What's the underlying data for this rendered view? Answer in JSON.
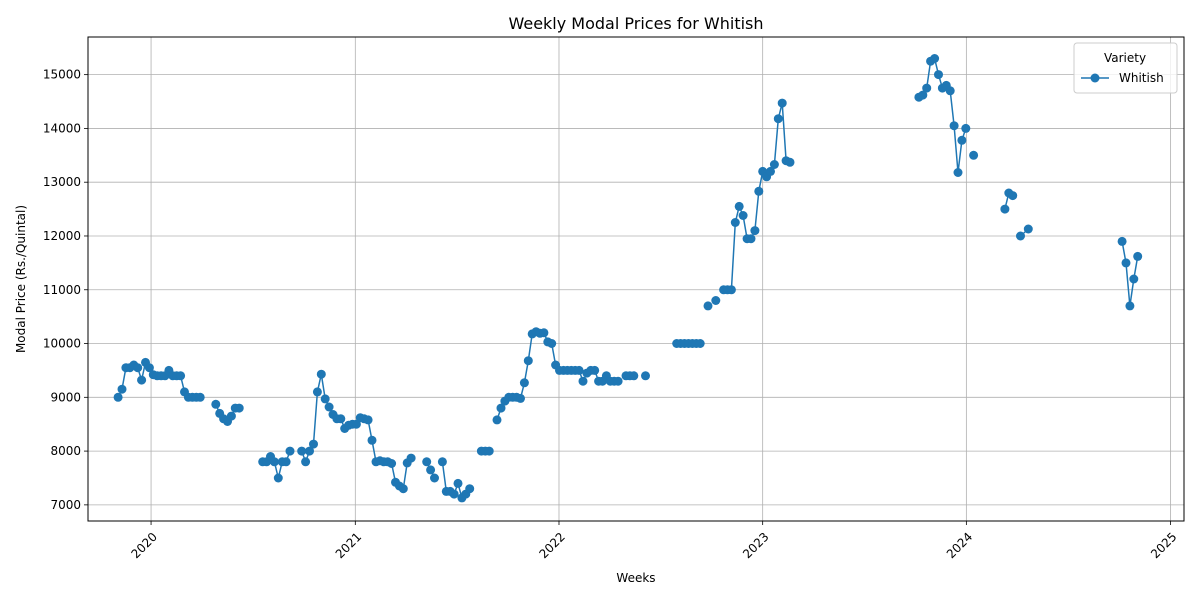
{
  "chart_data": {
    "type": "line",
    "title": "Weekly Modal Prices for Whitish",
    "xlabel": "Weeks",
    "ylabel": "Modal Price (Rs./Quintal)",
    "x_ticks": [
      "2020",
      "2021",
      "2022",
      "2023",
      "2024",
      "2025"
    ],
    "y_ticks": [
      "7000",
      "8000",
      "9000",
      "10000",
      "11000",
      "12000",
      "13000",
      "14000",
      "15000"
    ],
    "ylim": [
      6700,
      15700
    ],
    "xlim": [
      "2019-09-10",
      "2025-01-25"
    ],
    "grid": true,
    "legend": {
      "title": "Variety",
      "placement": "top-right"
    },
    "colors": {
      "series": "#1f77b4",
      "grid": "#b0b0b0",
      "axis": "#000000"
    },
    "series": [
      {
        "name": "Whitish",
        "segments": [
          [
            [
              "2019-11-03",
              9000
            ],
            [
              "2019-11-10",
              9150
            ],
            [
              "2019-11-17",
              9550
            ],
            [
              "2019-11-24",
              9550
            ],
            [
              "2019-12-01",
              9600
            ],
            [
              "2019-12-08",
              9550
            ],
            [
              "2019-12-15",
              9320
            ],
            [
              "2019-12-22",
              9650
            ],
            [
              "2019-12-29",
              9550
            ],
            [
              "2020-01-05",
              9420
            ],
            [
              "2020-01-12",
              9400
            ],
            [
              "2020-01-19",
              9400
            ],
            [
              "2020-01-26",
              9400
            ],
            [
              "2020-02-02",
              9500
            ],
            [
              "2020-02-09",
              9400
            ],
            [
              "2020-02-16",
              9400
            ],
            [
              "2020-02-23",
              9400
            ],
            [
              "2020-03-01",
              9100
            ],
            [
              "2020-03-08",
              9000
            ],
            [
              "2020-03-15",
              9000
            ],
            [
              "2020-03-22",
              9000
            ],
            [
              "2020-03-29",
              9000
            ]
          ],
          [
            [
              "2020-04-26",
              8870
            ],
            [
              "2020-05-03",
              8700
            ],
            [
              "2020-05-10",
              8600
            ],
            [
              "2020-05-17",
              8550
            ],
            [
              "2020-05-24",
              8650
            ],
            [
              "2020-05-31",
              8800
            ],
            [
              "2020-06-07",
              8800
            ]
          ],
          [
            [
              "2020-07-19",
              7800
            ],
            [
              "2020-07-26",
              7800
            ],
            [
              "2020-08-02",
              7900
            ],
            [
              "2020-08-09",
              7800
            ],
            [
              "2020-08-16",
              7500
            ],
            [
              "2020-08-23",
              7800
            ],
            [
              "2020-08-30",
              7800
            ],
            [
              "2020-09-06",
              8000
            ]
          ],
          [
            [
              "2020-09-27",
              8000
            ],
            [
              "2020-10-04",
              7800
            ],
            [
              "2020-10-11",
              8000
            ],
            [
              "2020-10-18",
              8130
            ],
            [
              "2020-10-25",
              9100
            ],
            [
              "2020-11-01",
              9430
            ],
            [
              "2020-11-08",
              8970
            ],
            [
              "2020-11-15",
              8820
            ],
            [
              "2020-11-22",
              8680
            ],
            [
              "2020-11-29",
              8600
            ],
            [
              "2020-12-06",
              8600
            ],
            [
              "2020-12-13",
              8420
            ],
            [
              "2020-12-20",
              8480
            ],
            [
              "2020-12-27",
              8500
            ],
            [
              "2021-01-03",
              8500
            ],
            [
              "2021-01-10",
              8620
            ],
            [
              "2021-01-17",
              8600
            ],
            [
              "2021-01-24",
              8580
            ],
            [
              "2021-01-31",
              8200
            ],
            [
              "2021-02-07",
              7800
            ],
            [
              "2021-02-14",
              7820
            ],
            [
              "2021-02-21",
              7800
            ],
            [
              "2021-02-28",
              7800
            ],
            [
              "2021-03-07",
              7770
            ],
            [
              "2021-03-14",
              7420
            ],
            [
              "2021-03-21",
              7350
            ],
            [
              "2021-03-28",
              7300
            ],
            [
              "2021-04-04",
              7780
            ],
            [
              "2021-04-11",
              7870
            ]
          ],
          [
            [
              "2021-05-09",
              7800
            ],
            [
              "2021-05-16",
              7650
            ],
            [
              "2021-05-23",
              7500
            ]
          ],
          [
            [
              "2021-06-06",
              7800
            ],
            [
              "2021-06-13",
              7250
            ],
            [
              "2021-06-20",
              7250
            ],
            [
              "2021-06-27",
              7200
            ],
            [
              "2021-07-04",
              7400
            ],
            [
              "2021-07-11",
              7130
            ],
            [
              "2021-07-18",
              7200
            ],
            [
              "2021-07-25",
              7300
            ]
          ],
          [
            [
              "2021-08-15",
              8000
            ],
            [
              "2021-08-22",
              8000
            ],
            [
              "2021-08-29",
              8000
            ]
          ],
          [
            [
              "2021-09-12",
              8580
            ],
            [
              "2021-09-19",
              8800
            ],
            [
              "2021-09-26",
              8930
            ],
            [
              "2021-10-03",
              9000
            ],
            [
              "2021-10-10",
              9000
            ],
            [
              "2021-10-17",
              9000
            ],
            [
              "2021-10-24",
              8980
            ],
            [
              "2021-10-31",
              9270
            ],
            [
              "2021-11-07",
              9680
            ],
            [
              "2021-11-14",
              10180
            ],
            [
              "2021-11-21",
              10220
            ],
            [
              "2021-11-28",
              10190
            ],
            [
              "2021-12-05",
              10200
            ],
            [
              "2021-12-12",
              10030
            ],
            [
              "2021-12-19",
              10000
            ],
            [
              "2021-12-26",
              9600
            ],
            [
              "2022-01-02",
              9500
            ],
            [
              "2022-01-09",
              9500
            ],
            [
              "2022-01-16",
              9500
            ],
            [
              "2022-01-23",
              9500
            ],
            [
              "2022-01-30",
              9500
            ],
            [
              "2022-02-06",
              9500
            ],
            [
              "2022-02-13",
              9300
            ],
            [
              "2022-02-20",
              9450
            ],
            [
              "2022-02-27",
              9500
            ],
            [
              "2022-03-06",
              9500
            ],
            [
              "2022-03-13",
              9300
            ],
            [
              "2022-03-20",
              9300
            ],
            [
              "2022-03-27",
              9400
            ],
            [
              "2022-04-03",
              9300
            ],
            [
              "2022-04-10",
              9300
            ],
            [
              "2022-04-17",
              9300
            ]
          ],
          [
            [
              "2022-05-01",
              9400
            ],
            [
              "2022-05-08",
              9400
            ],
            [
              "2022-05-15",
              9400
            ]
          ],
          [
            [
              "2022-06-05",
              9400
            ]
          ],
          [
            [
              "2022-07-31",
              10000
            ],
            [
              "2022-08-07",
              10000
            ],
            [
              "2022-08-14",
              10000
            ],
            [
              "2022-08-21",
              10000
            ],
            [
              "2022-08-28",
              10000
            ],
            [
              "2022-09-04",
              10000
            ],
            [
              "2022-09-11",
              10000
            ]
          ],
          [
            [
              "2022-09-25",
              10700
            ]
          ],
          [
            [
              "2022-10-09",
              10800
            ]
          ],
          [
            [
              "2022-10-23",
              11000
            ],
            [
              "2022-10-30",
              11000
            ],
            [
              "2022-11-06",
              11000
            ],
            [
              "2022-11-13",
              12250
            ],
            [
              "2022-11-20",
              12550
            ],
            [
              "2022-11-27",
              12380
            ],
            [
              "2022-12-04",
              11950
            ],
            [
              "2022-12-11",
              11950
            ],
            [
              "2022-12-18",
              12100
            ],
            [
              "2022-12-25",
              12830
            ],
            [
              "2023-01-01",
              13200
            ],
            [
              "2023-01-08",
              13100
            ],
            [
              "2023-01-15",
              13200
            ],
            [
              "2023-01-22",
              13330
            ],
            [
              "2023-01-29",
              14180
            ],
            [
              "2023-02-05",
              14470
            ],
            [
              "2023-02-12",
              13400
            ],
            [
              "2023-02-19",
              13370
            ]
          ],
          [
            [
              "2023-10-08",
              14580
            ],
            [
              "2023-10-15",
              14620
            ],
            [
              "2023-10-22",
              14750
            ],
            [
              "2023-10-29",
              15250
            ],
            [
              "2023-11-05",
              15300
            ],
            [
              "2023-11-12",
              15000
            ],
            [
              "2023-11-19",
              14750
            ],
            [
              "2023-11-26",
              14800
            ],
            [
              "2023-12-03",
              14700
            ],
            [
              "2023-12-10",
              14050
            ],
            [
              "2023-12-17",
              13180
            ],
            [
              "2023-12-24",
              13780
            ],
            [
              "2023-12-31",
              14000
            ]
          ],
          [
            [
              "2024-01-14",
              13500
            ]
          ],
          [
            [
              "2024-03-10",
              12500
            ],
            [
              "2024-03-17",
              12800
            ],
            [
              "2024-03-24",
              12750
            ]
          ],
          [
            [
              "2024-04-07",
              12000
            ],
            [
              "2024-04-21",
              12130
            ]
          ],
          [
            [
              "2024-10-06",
              11900
            ],
            [
              "2024-10-13",
              11500
            ],
            [
              "2024-10-20",
              10700
            ],
            [
              "2024-10-27",
              11200
            ],
            [
              "2024-11-03",
              11620
            ]
          ]
        ]
      }
    ]
  }
}
